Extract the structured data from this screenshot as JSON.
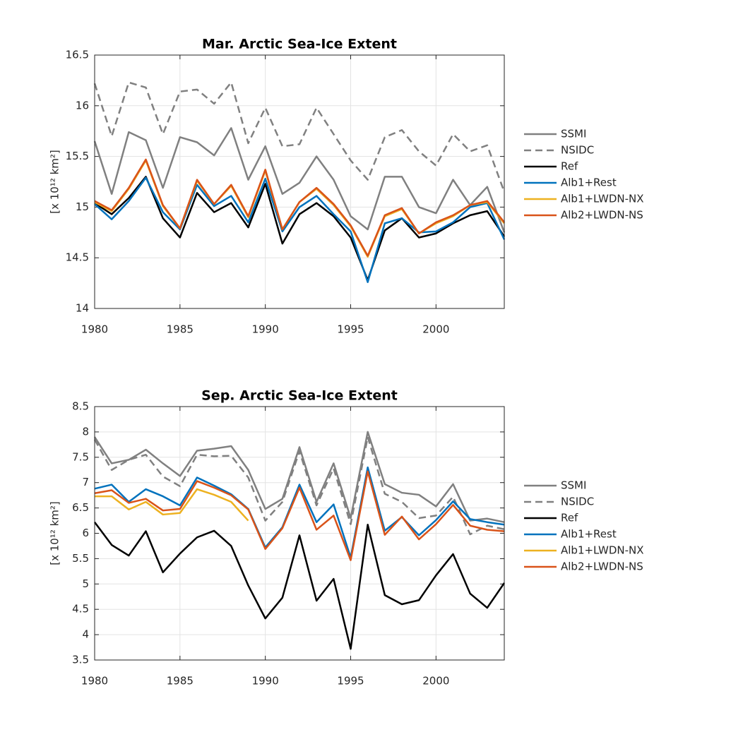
{
  "chart_data": [
    {
      "type": "line",
      "title": "Mar. Arctic Sea-Ice Extent",
      "ylabel": "[x 10¹² km²]",
      "x": [
        1980,
        1981,
        1982,
        1983,
        1984,
        1985,
        1986,
        1987,
        1988,
        1989,
        1990,
        1991,
        1992,
        1993,
        1994,
        1995,
        1996,
        1997,
        1998,
        1999,
        2000,
        2001,
        2002,
        2003,
        2004
      ],
      "xlim": [
        1980,
        2004
      ],
      "xticks": [
        1980,
        1985,
        1990,
        1995,
        2000
      ],
      "ylim": [
        14,
        16.5
      ],
      "yticks": [
        14,
        14.5,
        15,
        15.5,
        16,
        16.5
      ],
      "grid": true,
      "legend": "right",
      "series": [
        {
          "name": "SSMI",
          "color": "#808080",
          "dashed": false,
          "values": [
            15.65,
            15.13,
            15.74,
            15.66,
            15.19,
            15.69,
            15.64,
            15.51,
            15.78,
            15.27,
            15.6,
            15.13,
            15.24,
            15.5,
            15.27,
            14.91,
            14.78,
            15.3,
            15.3,
            15.0,
            14.94,
            15.27,
            15.02,
            15.2,
            14.75
          ]
        },
        {
          "name": "NSIDC",
          "color": "#808080",
          "dashed": true,
          "values": [
            16.22,
            15.7,
            16.23,
            16.18,
            15.72,
            16.14,
            16.16,
            16.02,
            16.23,
            15.63,
            15.98,
            15.6,
            15.62,
            15.98,
            15.72,
            15.46,
            15.27,
            15.69,
            15.76,
            15.55,
            15.41,
            15.72,
            15.55,
            15.61,
            15.15
          ]
        },
        {
          "name": "Ref",
          "color": "#000000",
          "dashed": false,
          "values": [
            15.04,
            14.93,
            15.09,
            15.3,
            14.89,
            14.7,
            15.14,
            14.95,
            15.04,
            14.8,
            15.23,
            14.64,
            14.93,
            15.04,
            14.91,
            14.7,
            14.28,
            14.77,
            14.89,
            14.7,
            14.74,
            14.84,
            14.92,
            14.96,
            14.71
          ]
        },
        {
          "name": "Alb1+Rest",
          "color": "#0072bd",
          "dashed": false,
          "values": [
            15.03,
            14.88,
            15.06,
            15.29,
            14.95,
            14.78,
            15.22,
            15.01,
            15.11,
            14.85,
            15.28,
            14.76,
            15.0,
            15.11,
            14.93,
            14.76,
            14.26,
            14.84,
            14.89,
            14.75,
            14.76,
            14.85,
            15.0,
            15.04,
            14.68
          ]
        },
        {
          "name": "Alb1+LWDN-NX",
          "color": "#edb120",
          "dashed": false,
          "values": [
            15.05,
            14.96,
            15.18,
            15.46,
            15.01,
            14.79,
            15.26,
            15.03,
            15.21,
            14.9,
            15.36,
            14.78,
            15.05,
            15.18,
            15.02,
            14.81,
            14.51,
            14.91,
            14.98,
            14.74,
            14.84,
            14.91,
            15.02,
            15.05,
            14.84
          ]
        },
        {
          "name": "Alb2+LWDN-NS",
          "color": "#d95319",
          "dashed": false,
          "values": [
            15.06,
            14.97,
            15.19,
            15.47,
            15.02,
            14.79,
            15.27,
            15.03,
            15.22,
            14.91,
            15.37,
            14.78,
            15.05,
            15.19,
            15.03,
            14.82,
            14.52,
            14.92,
            14.99,
            14.74,
            14.85,
            14.92,
            15.02,
            15.06,
            14.85
          ]
        }
      ]
    },
    {
      "type": "line",
      "title": "Sep. Arctic Sea-Ice Extent",
      "ylabel": "[x 10¹² km²]",
      "x": [
        1980,
        1981,
        1982,
        1983,
        1984,
        1985,
        1986,
        1987,
        1988,
        1989,
        1990,
        1991,
        1992,
        1993,
        1994,
        1995,
        1996,
        1997,
        1998,
        1999,
        2000,
        2001,
        2002,
        2003,
        2004
      ],
      "xlim": [
        1980,
        2004
      ],
      "xticks": [
        1980,
        1985,
        1990,
        1995,
        2000
      ],
      "ylim": [
        3.5,
        8.5
      ],
      "yticks": [
        3.5,
        4,
        4.5,
        5,
        5.5,
        6,
        6.5,
        7,
        7.5,
        8,
        8.5
      ],
      "grid": true,
      "legend": "right",
      "series": [
        {
          "name": "SSMI",
          "color": "#808080",
          "dashed": false,
          "values": [
            7.9,
            7.38,
            7.45,
            7.65,
            7.38,
            7.13,
            7.63,
            7.67,
            7.72,
            7.25,
            6.48,
            6.68,
            7.7,
            6.62,
            7.38,
            6.3,
            8.0,
            6.97,
            6.8,
            6.76,
            6.53,
            6.97,
            6.25,
            6.29,
            6.22
          ]
        },
        {
          "name": "NSIDC",
          "color": "#808080",
          "dashed": true,
          "values": [
            7.85,
            7.25,
            7.45,
            7.55,
            7.12,
            6.93,
            7.55,
            7.52,
            7.53,
            7.1,
            6.25,
            6.62,
            7.62,
            6.55,
            7.28,
            6.18,
            7.9,
            6.78,
            6.62,
            6.3,
            6.35,
            6.72,
            5.98,
            6.15,
            6.08
          ]
        },
        {
          "name": "Ref",
          "color": "#000000",
          "dashed": false,
          "values": [
            6.22,
            5.77,
            5.56,
            6.04,
            5.23,
            5.6,
            5.92,
            6.05,
            5.75,
            4.97,
            4.32,
            4.73,
            5.96,
            4.67,
            5.1,
            3.72,
            6.17,
            4.78,
            4.6,
            4.68,
            5.17,
            5.59,
            4.81,
            4.53,
            5.02
          ]
        },
        {
          "name": "Alb1+Rest",
          "color": "#0072bd",
          "dashed": false,
          "values": [
            6.88,
            6.96,
            6.62,
            6.87,
            6.73,
            6.55,
            7.1,
            6.94,
            6.77,
            6.48,
            5.72,
            6.12,
            6.96,
            6.22,
            6.57,
            5.52,
            7.3,
            6.05,
            6.32,
            5.96,
            6.26,
            6.63,
            6.28,
            6.22,
            6.17
          ]
        },
        {
          "name": "Alb1+LWDN-NX",
          "color": "#edb120",
          "dashed": false,
          "values": [
            6.73,
            6.73,
            6.47,
            6.62,
            6.37,
            6.4,
            6.87,
            6.76,
            6.62,
            6.25,
            null,
            null,
            null,
            null,
            null,
            null,
            null,
            null,
            null,
            null,
            null,
            null,
            null,
            null,
            null
          ]
        },
        {
          "name": "Alb2+LWDN-NS",
          "color": "#d95319",
          "dashed": false,
          "values": [
            6.79,
            6.85,
            6.6,
            6.68,
            6.45,
            6.48,
            7.03,
            6.9,
            6.75,
            6.47,
            5.69,
            6.1,
            6.9,
            6.07,
            6.35,
            5.47,
            7.22,
            5.97,
            6.33,
            5.88,
            6.18,
            6.56,
            6.15,
            6.07,
            6.04
          ]
        }
      ]
    }
  ]
}
